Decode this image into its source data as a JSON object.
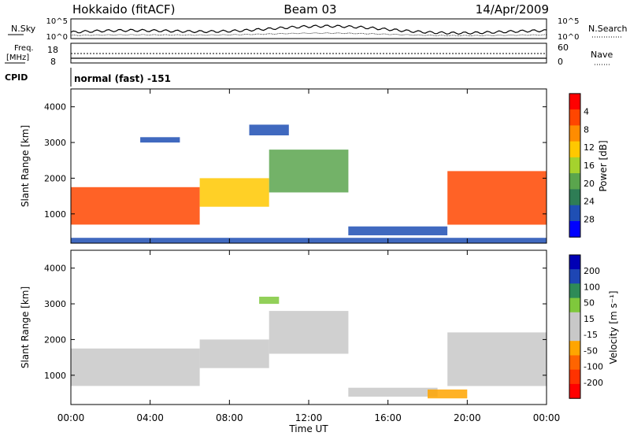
{
  "header": {
    "station": "Hokkaido (fitACF)",
    "beam": "Beam 03",
    "date": "14/Apr/2009"
  },
  "top_panel": {
    "left_label": "N.Sky",
    "left_ticks": [
      "10^5",
      "10^0"
    ],
    "right_ticks": [
      "10^5",
      "10^0"
    ],
    "right_label": "N.Search"
  },
  "freq_panel": {
    "left_label_1": "Freq.",
    "left_label_2": "[MHz]",
    "left_ticks": [
      "18",
      "8"
    ],
    "right_ticks": [
      "60",
      "0"
    ],
    "right_label": "Nave"
  },
  "cpid": {
    "label": "CPID",
    "value": "normal (fast) -151"
  },
  "colors": {
    "power_scale": [
      "#0000ff",
      "#1f4fb4",
      "#2e7d55",
      "#5aa54d",
      "#a5d22d",
      "#ffc800",
      "#ff8c00",
      "#ff4600",
      "#ff0000"
    ],
    "velocity_scale": [
      "#0000b4",
      "#1e46b4",
      "#2e8b57",
      "#7fc83c",
      "#c8c8c8",
      "#c8c8c8",
      "#ffa500",
      "#ff6400",
      "#ff3200",
      "#ff0000"
    ]
  },
  "chart_data": [
    {
      "type": "heatmap",
      "quantity": "Power",
      "ylabel": "Slant Range [km]",
      "ylim": [
        180,
        4500
      ],
      "y_ticks": [
        "1000",
        "2000",
        "3000",
        "4000"
      ],
      "xlim": [
        0,
        24
      ],
      "x_ticks": [
        "00:00",
        "04:00",
        "08:00",
        "12:00",
        "16:00",
        "20:00",
        "00:00"
      ],
      "colorbar_label": "Power [dB]",
      "colorbar_ticks": [
        "4",
        "8",
        "12",
        "16",
        "20",
        "24",
        "28"
      ],
      "colorbar_range": [
        0,
        32
      ],
      "features": [
        {
          "t0": 0.0,
          "t1": 6.5,
          "r0": 700,
          "r1": 1750,
          "v": 27
        },
        {
          "t0": 6.5,
          "t1": 10.0,
          "r0": 1200,
          "r1": 2000,
          "v": 18
        },
        {
          "t0": 10.0,
          "t1": 14.0,
          "r0": 1600,
          "r1": 2800,
          "v": 13
        },
        {
          "t0": 3.5,
          "t1": 5.5,
          "r0": 3000,
          "r1": 3150,
          "v": 5
        },
        {
          "t0": 9.0,
          "t1": 11.0,
          "r0": 3200,
          "r1": 3500,
          "v": 5
        },
        {
          "t0": 14.0,
          "t1": 19.0,
          "r0": 400,
          "r1": 650,
          "v": 6
        },
        {
          "t0": 19.0,
          "t1": 24.0,
          "r0": 700,
          "r1": 2200,
          "v": 26
        },
        {
          "t0": 0.0,
          "t1": 24.0,
          "r0": 180,
          "r1": 330,
          "v": 4
        }
      ]
    },
    {
      "type": "heatmap",
      "quantity": "Velocity",
      "ylabel": "Slant Range [km]",
      "ylim": [
        180,
        4500
      ],
      "y_ticks": [
        "1000",
        "2000",
        "3000",
        "4000"
      ],
      "xlim": [
        0,
        24
      ],
      "x_ticks": [
        "00:00",
        "04:00",
        "08:00",
        "12:00",
        "16:00",
        "20:00",
        "00:00"
      ],
      "xlabel": "Time UT",
      "colorbar_label": "Velocity [m s⁻¹]",
      "colorbar_ticks": [
        "200",
        "100",
        "50",
        "15",
        "-15",
        "-50",
        "-100",
        "-200"
      ],
      "colorbar_range": [
        -250,
        250
      ],
      "features": [
        {
          "t0": 0.0,
          "t1": 6.5,
          "r0": 700,
          "r1": 1750,
          "v": 0
        },
        {
          "t0": 6.5,
          "t1": 10.0,
          "r0": 1200,
          "r1": 2000,
          "v": -10
        },
        {
          "t0": 10.0,
          "t1": 14.0,
          "r0": 1600,
          "r1": 2800,
          "v": -20
        },
        {
          "t0": 9.5,
          "t1": 10.5,
          "r0": 3000,
          "r1": 3200,
          "v": 60
        },
        {
          "t0": 14.0,
          "t1": 18.5,
          "r0": 400,
          "r1": 650,
          "v": 40
        },
        {
          "t0": 18.0,
          "t1": 20.0,
          "r0": 350,
          "r1": 600,
          "v": -60
        },
        {
          "t0": 19.0,
          "t1": 24.0,
          "r0": 700,
          "r1": 2200,
          "v": 0
        }
      ]
    }
  ]
}
